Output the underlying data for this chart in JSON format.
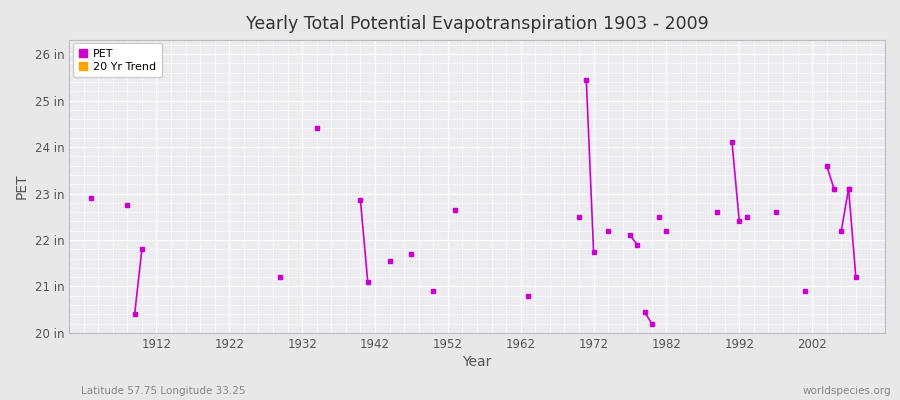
{
  "title": "Yearly Total Potential Evapotranspiration 1903 - 2009",
  "xlabel": "Year",
  "ylabel": "PET",
  "fig_bg": "#e8e8e8",
  "plot_bg": "#ebebf0",
  "grid_color": "#ffffff",
  "pet_color": "#cc00cc",
  "trend_color": "#ffa500",
  "ylim": [
    20,
    26.3
  ],
  "ytick_vals": [
    20,
    21,
    22,
    23,
    24,
    25,
    26
  ],
  "ytick_labels": [
    "20 in",
    "21 in",
    "22 in",
    "23 in",
    "24 in",
    "25 in",
    "26 in"
  ],
  "xlim": [
    1900,
    2012
  ],
  "xticks": [
    1912,
    1922,
    1932,
    1942,
    1952,
    1962,
    1972,
    1982,
    1992,
    2002
  ],
  "footnote_left": "Latitude 57.75 Longitude 33.25",
  "footnote_right": "worldspecies.org",
  "isolated_points": [
    [
      1903,
      22.9
    ],
    [
      1908,
      22.75
    ],
    [
      1929,
      21.2
    ],
    [
      1934,
      24.4
    ],
    [
      1944,
      21.55
    ],
    [
      1947,
      21.7
    ],
    [
      1950,
      20.9
    ],
    [
      1953,
      22.65
    ],
    [
      1963,
      20.8
    ],
    [
      1970,
      22.5
    ],
    [
      1974,
      22.2
    ],
    [
      1981,
      22.5
    ],
    [
      1982,
      22.2
    ],
    [
      1989,
      22.6
    ],
    [
      1993,
      22.5
    ],
    [
      1997,
      22.6
    ],
    [
      2001,
      20.9
    ]
  ],
  "line_segments": [
    [
      [
        1909,
        20.4
      ],
      [
        1910,
        21.8
      ]
    ],
    [
      [
        1940,
        22.85
      ],
      [
        1941,
        21.1
      ]
    ],
    [
      [
        1971,
        25.45
      ],
      [
        1972,
        21.75
      ]
    ],
    [
      [
        1977,
        22.1
      ],
      [
        1978,
        21.9
      ]
    ],
    [
      [
        1979,
        20.45
      ],
      [
        1980,
        20.2
      ]
    ],
    [
      [
        1991,
        24.1
      ],
      [
        1992,
        22.4
      ]
    ],
    [
      [
        2004,
        23.6
      ],
      [
        2005,
        23.1
      ]
    ],
    [
      [
        2006,
        22.2
      ],
      [
        2007,
        23.1
      ]
    ],
    [
      [
        2007,
        23.1
      ],
      [
        2008,
        21.2
      ]
    ]
  ]
}
